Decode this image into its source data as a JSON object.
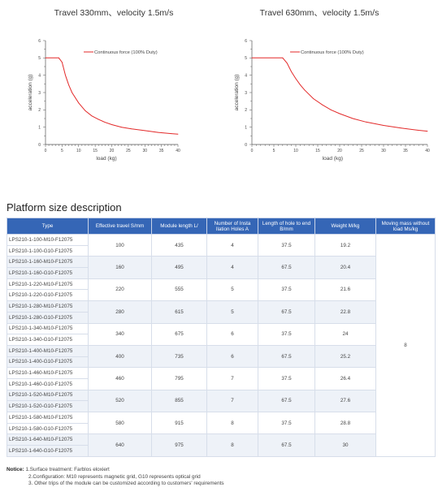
{
  "chart_data": [
    {
      "type": "line",
      "title": "Travel 330mm、velocity 1.5m/s",
      "xlabel": "load (kg)",
      "ylabel": "acceleration (g)",
      "xlim": [
        0,
        40
      ],
      "ylim": [
        0,
        6
      ],
      "x_ticks": [
        0,
        5,
        10,
        15,
        20,
        25,
        30,
        35,
        40
      ],
      "y_ticks": [
        0,
        1,
        2,
        3,
        4,
        5,
        6
      ],
      "legend_position": "top-right",
      "series": [
        {
          "name": "Continuous force (100% Duty)",
          "color": "#e32a2a",
          "x": [
            0,
            4,
            5,
            6,
            7,
            8,
            10,
            12,
            14,
            16,
            18,
            20,
            23,
            26,
            30,
            34,
            38,
            40
          ],
          "y": [
            5,
            5,
            4.75,
            4.0,
            3.45,
            3.0,
            2.4,
            1.95,
            1.65,
            1.45,
            1.28,
            1.15,
            1.0,
            0.9,
            0.8,
            0.7,
            0.63,
            0.6
          ]
        }
      ]
    },
    {
      "type": "line",
      "title": "Travel 630mm、velocity 1.5m/s",
      "xlabel": "load (kg)",
      "ylabel": "acceleration (g)",
      "xlim": [
        0,
        40
      ],
      "ylim": [
        0,
        6
      ],
      "x_ticks": [
        0,
        5,
        10,
        15,
        20,
        25,
        30,
        35,
        40
      ],
      "y_ticks": [
        0,
        1,
        2,
        3,
        4,
        5,
        6
      ],
      "legend_position": "top-right",
      "series": [
        {
          "name": "Continuous force (100% Duty)",
          "color": "#e32a2a",
          "x": [
            0,
            7,
            8,
            9,
            10,
            11,
            12,
            14,
            16,
            18,
            20,
            23,
            26,
            30,
            34,
            38,
            40
          ],
          "y": [
            5,
            5,
            4.7,
            4.2,
            3.8,
            3.45,
            3.15,
            2.65,
            2.3,
            2.0,
            1.78,
            1.5,
            1.3,
            1.1,
            0.95,
            0.82,
            0.77
          ]
        }
      ]
    }
  ],
  "table": {
    "title": "Platform size description",
    "headers": [
      "Type",
      "Effective travel S/mm",
      "Module length L/",
      "Number of Insta llation Holes A",
      "Length of hole to end B/mm",
      "Weight M/kg",
      "Moving mass without load Ms/kg"
    ],
    "types": [
      "LPS210-1-100-M10-F12075",
      "LPS210-1-100-G10-F12075",
      "LPS210-1-160-M10-F12075",
      "LPS210-1-160-G10-F12075",
      "LPS210-1-220-M10-F12075",
      "LPS210-1-220-G10-F12075",
      "LPS210-1-280-M10-F12075",
      "LPS210-1-280-G10-F12075",
      "LPS210-1-340-M10-F12075",
      "LPS210-1-340-G10-F12075",
      "LPS210-1-400-M10-F12075",
      "LPS210-1-400-G10-F12075",
      "LPS210-1-460-M10-F12075",
      "LPS210-1-460-G10-F12075",
      "LPS210-1-520-M10-F12075",
      "LPS210-1-520-G10-F12075",
      "LPS210-1-580-M10-F12075",
      "LPS210-1-580-G10-F12075",
      "LPS210-1-640-M10-F12075",
      "LPS210-1-640-G10-F12075"
    ],
    "groups": [
      {
        "travel": "100",
        "length": "435",
        "holes": "4",
        "hole_end": "37.5",
        "weight": "19.2"
      },
      {
        "travel": "160",
        "length": "495",
        "holes": "4",
        "hole_end": "67.5",
        "weight": "20.4"
      },
      {
        "travel": "220",
        "length": "555",
        "holes": "5",
        "hole_end": "37.5",
        "weight": "21.6"
      },
      {
        "travel": "280",
        "length": "615",
        "holes": "5",
        "hole_end": "67.5",
        "weight": "22.8"
      },
      {
        "travel": "340",
        "length": "675",
        "holes": "6",
        "hole_end": "37.5",
        "weight": "24"
      },
      {
        "travel": "400",
        "length": "735",
        "holes": "6",
        "hole_end": "67.5",
        "weight": "25.2"
      },
      {
        "travel": "460",
        "length": "795",
        "holes": "7",
        "hole_end": "37.5",
        "weight": "26.4"
      },
      {
        "travel": "520",
        "length": "855",
        "holes": "7",
        "hole_end": "67.5",
        "weight": "27.6"
      },
      {
        "travel": "580",
        "length": "915",
        "holes": "8",
        "hole_end": "37.5",
        "weight": "28.8"
      },
      {
        "travel": "640",
        "length": "975",
        "holes": "8",
        "hole_end": "67.5",
        "weight": "30"
      }
    ],
    "moving_mass": "8"
  },
  "notice": {
    "label": "Notice:",
    "items": [
      "1.Surface treatment: Farblos eloxiert",
      "2.Configuration: M10 represents magnetic grid, G10 represents optical grid",
      "3. Other trips of the module can be customized according to customers' requirements"
    ]
  }
}
